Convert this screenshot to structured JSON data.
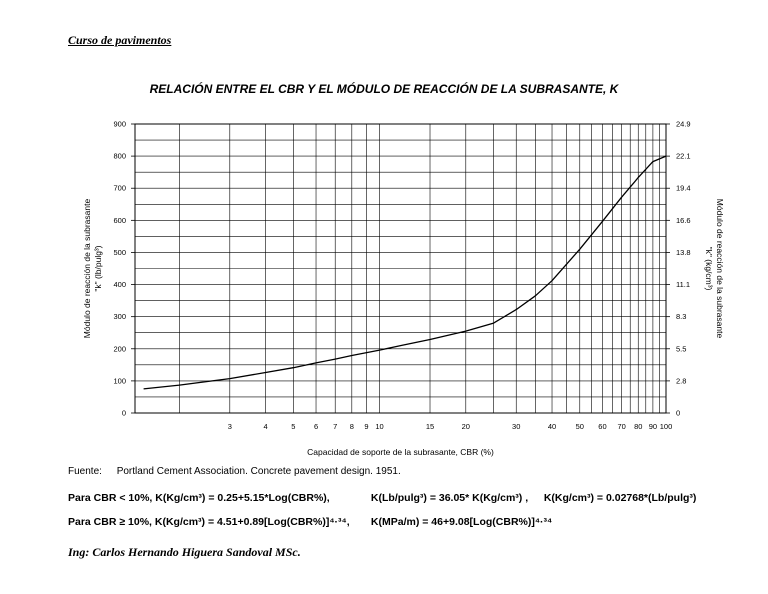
{
  "header": {
    "course": "Curso de pavimentos"
  },
  "chart_data": {
    "type": "line",
    "title": "RELACIÓN ENTRE EL CBR Y EL MÓDULO DE REACCIÓN DE LA SUBRASANTE, K",
    "xlabel": "Capacidad de soporte de la subrasante, CBR (%)",
    "ylabel": "Módulo de reacción de la subrasante",
    "ylabel_sub": "\"k\" (lb/pulg³)",
    "y2label": "Módulo de reacción de la subrasante",
    "y2label_sub": "\"k\" (kg/cm³)",
    "x_scale": "log",
    "xlim": [
      1.4,
      100
    ],
    "ylim": [
      0,
      900
    ],
    "grid": true,
    "x_ticks": [
      3,
      4,
      5,
      6,
      7,
      8,
      9,
      10,
      15,
      20,
      30,
      40,
      50,
      60,
      70,
      80,
      90,
      100
    ],
    "y_ticks": [
      0,
      100,
      200,
      300,
      400,
      500,
      600,
      700,
      800,
      900
    ],
    "y2_ticks": [
      "0",
      "2.8",
      "5.5",
      "8.3",
      "11.1",
      "13.8",
      "16.6",
      "19.4",
      "22.1",
      "24.9"
    ],
    "series": [
      {
        "x": [
          1.5,
          2,
          3,
          4,
          5,
          6,
          7,
          8,
          10,
          12,
          15,
          20,
          25,
          30,
          35,
          40,
          50,
          60,
          70,
          80,
          90,
          100
        ],
        "y": [
          75,
          87,
          107,
          126,
          141,
          156,
          168,
          179,
          196,
          211,
          229,
          255,
          280,
          322,
          365,
          412,
          510,
          597,
          672,
          733,
          783,
          800
        ]
      }
    ]
  },
  "source": {
    "label": "Fuente:",
    "text": "Portland Cement Association. Concrete pavement design. 1951."
  },
  "equations": {
    "row1_a": "Para CBR < 10%,    K(Kg/cm³) = 0.25+5.15*Log(CBR%),",
    "row1_b": "K(Lb/pulg³) = 36.05* K(Kg/cm³) ,",
    "row1_c": "K(Kg/cm³) =  0.02768*(Lb/pulg³)",
    "row2_a": "Para CBR ≥ 10%,    K(Kg/cm³) = 4.51+0.89[Log(CBR%)]⁴·³⁴,",
    "row2_b": "K(MPa/m) = 46+9.08[Log(CBR%)]⁴·³⁴"
  },
  "signature": "Ing: Carlos Hernando Higuera Sandoval MSc."
}
